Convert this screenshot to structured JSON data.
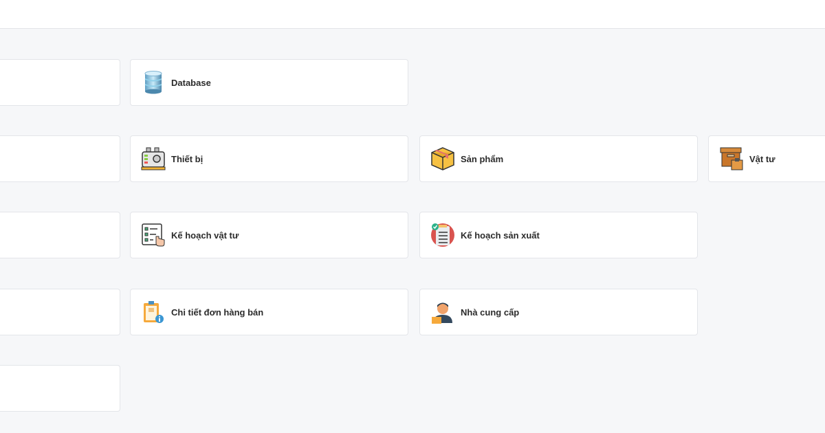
{
  "modules": [
    {
      "label": "Database",
      "icon": "database-icon"
    },
    {
      "label": "Thiết bị",
      "icon": "machine-icon"
    },
    {
      "label": "Sản phẩm",
      "icon": "box-icon"
    },
    {
      "label": "Vật tư",
      "icon": "materials-box-icon"
    },
    {
      "label": "Kế hoạch vật tư",
      "icon": "checklist-icon"
    },
    {
      "label": "Kế hoạch sản xuất",
      "icon": "production-plan-icon"
    },
    {
      "label": "Chi tiết đơn hàng bán",
      "icon": "clipboard-info-icon"
    },
    {
      "label": "Nhà cung cấp",
      "icon": "supplier-icon"
    }
  ]
}
